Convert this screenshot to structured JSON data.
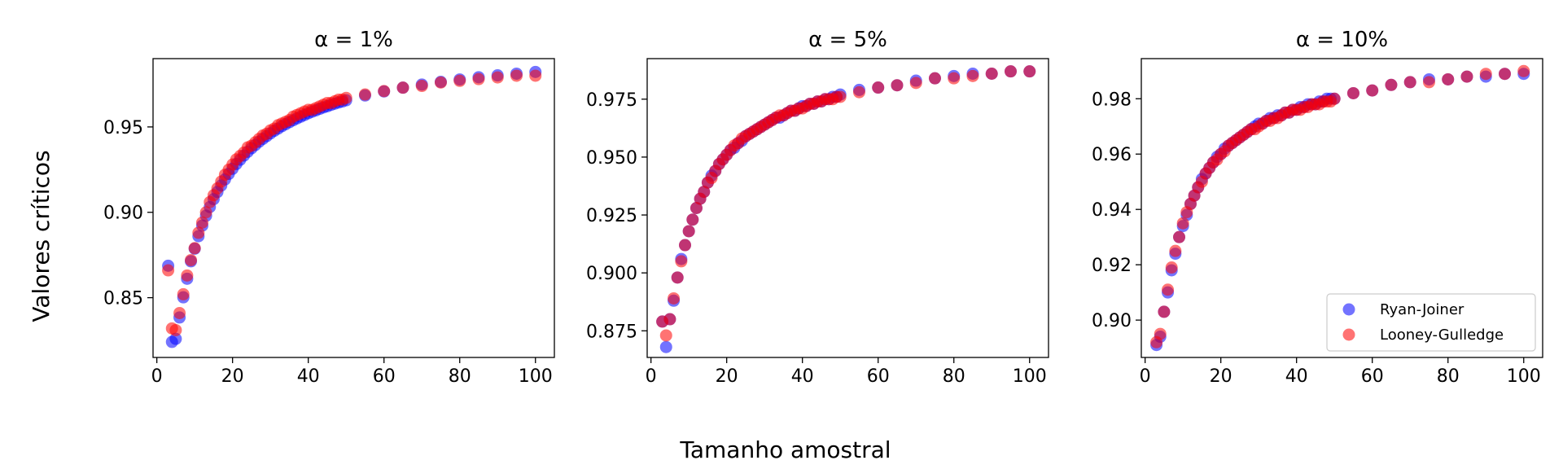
{
  "figure": {
    "ylabel": "Valores críticos",
    "xlabel": "Tamanho amostral"
  },
  "legend": {
    "entries": [
      "Ryan-Joiner",
      "Looney-Gulledge"
    ],
    "placement": "lower-right of third panel"
  },
  "colors": {
    "ryan_joiner": "#0000ff",
    "looney_gulledge": "#ff0000",
    "axes": "#000000"
  },
  "chart_data": [
    {
      "type": "scatter",
      "title": "α = 1%",
      "xlim": [
        -1,
        105
      ],
      "ylim": [
        0.815,
        0.99
      ],
      "xticks": [
        0,
        20,
        40,
        60,
        80,
        100
      ],
      "yticks": [
        0.85,
        0.9,
        0.95
      ],
      "ytick_labels": [
        "0.85",
        "0.90",
        "0.95"
      ],
      "series": [
        {
          "name": "Ryan-Joiner",
          "x": [
            3,
            4,
            5,
            6,
            7,
            8,
            9,
            10,
            11,
            12,
            13,
            14,
            15,
            16,
            17,
            18,
            19,
            20,
            21,
            22,
            23,
            24,
            25,
            26,
            27,
            28,
            29,
            30,
            31,
            32,
            33,
            34,
            35,
            36,
            37,
            38,
            39,
            40,
            41,
            42,
            43,
            44,
            45,
            46,
            47,
            48,
            49,
            50,
            55,
            60,
            65,
            70,
            75,
            80,
            85,
            90,
            95,
            100
          ],
          "y": [
            0.8687,
            0.8241,
            0.8259,
            0.8384,
            0.8502,
            0.8611,
            0.8713,
            0.8787,
            0.886,
            0.8922,
            0.898,
            0.9031,
            0.9077,
            0.9119,
            0.9157,
            0.9193,
            0.9225,
            0.9255,
            0.9283,
            0.9308,
            0.9332,
            0.9354,
            0.9375,
            0.9394,
            0.9413,
            0.943,
            0.9446,
            0.9462,
            0.9477,
            0.949,
            0.9504,
            0.9516,
            0.9528,
            0.9539,
            0.955,
            0.956,
            0.957,
            0.958,
            0.9589,
            0.9597,
            0.9606,
            0.9614,
            0.9621,
            0.9629,
            0.9636,
            0.9643,
            0.9649,
            0.9656,
            0.9684,
            0.9708,
            0.973,
            0.9748,
            0.9764,
            0.9778,
            0.9791,
            0.9802,
            0.9812,
            0.9822
          ]
        },
        {
          "name": "Looney-Gulledge",
          "x": [
            3,
            4,
            5,
            6,
            7,
            8,
            9,
            10,
            11,
            12,
            13,
            14,
            15,
            16,
            17,
            18,
            19,
            20,
            21,
            22,
            23,
            24,
            25,
            26,
            27,
            28,
            29,
            30,
            31,
            32,
            33,
            34,
            35,
            36,
            37,
            38,
            39,
            40,
            41,
            42,
            43,
            44,
            45,
            46,
            47,
            48,
            49,
            50,
            55,
            60,
            65,
            70,
            75,
            80,
            85,
            90,
            95,
            100
          ],
          "y": [
            0.866,
            0.832,
            0.831,
            0.841,
            0.852,
            0.863,
            0.872,
            0.879,
            0.888,
            0.894,
            0.9,
            0.906,
            0.91,
            0.914,
            0.918,
            0.922,
            0.925,
            0.928,
            0.931,
            0.933,
            0.935,
            0.938,
            0.939,
            0.941,
            0.943,
            0.945,
            0.946,
            0.948,
            0.949,
            0.951,
            0.952,
            0.953,
            0.954,
            0.956,
            0.957,
            0.958,
            0.959,
            0.96,
            0.96,
            0.961,
            0.962,
            0.963,
            0.964,
            0.964,
            0.965,
            0.966,
            0.966,
            0.967,
            0.969,
            0.971,
            0.973,
            0.974,
            0.976,
            0.977,
            0.978,
            0.979,
            0.98,
            0.98
          ]
        }
      ]
    },
    {
      "type": "scatter",
      "title": "α = 5%",
      "xlim": [
        -1,
        105
      ],
      "ylim": [
        0.8635,
        0.9925
      ],
      "xticks": [
        0,
        20,
        40,
        60,
        80,
        100
      ],
      "yticks": [
        0.875,
        0.9,
        0.925,
        0.95,
        0.975
      ],
      "ytick_labels": [
        "0.875",
        "0.900",
        "0.925",
        "0.950",
        "0.975"
      ],
      "series": [
        {
          "name": "Ryan-Joiner",
          "x": [
            3,
            4,
            5,
            6,
            7,
            8,
            9,
            10,
            11,
            12,
            13,
            14,
            15,
            16,
            17,
            18,
            19,
            20,
            21,
            22,
            23,
            24,
            25,
            26,
            27,
            28,
            29,
            30,
            31,
            32,
            33,
            34,
            35,
            36,
            37,
            38,
            39,
            40,
            41,
            42,
            43,
            44,
            45,
            46,
            47,
            48,
            49,
            50,
            55,
            60,
            65,
            70,
            75,
            80,
            85,
            90,
            95,
            100
          ],
          "y": [
            0.879,
            0.868,
            0.88,
            0.888,
            0.898,
            0.906,
            0.912,
            0.918,
            0.923,
            0.928,
            0.932,
            0.935,
            0.939,
            0.942,
            0.944,
            0.947,
            0.949,
            0.951,
            0.953,
            0.954,
            0.956,
            0.957,
            0.959,
            0.96,
            0.961,
            0.962,
            0.963,
            0.964,
            0.965,
            0.966,
            0.967,
            0.967,
            0.968,
            0.969,
            0.97,
            0.97,
            0.971,
            0.972,
            0.972,
            0.973,
            0.973,
            0.974,
            0.974,
            0.975,
            0.975,
            0.976,
            0.976,
            0.977,
            0.979,
            0.98,
            0.981,
            0.983,
            0.984,
            0.985,
            0.986,
            0.986,
            0.987,
            0.987
          ]
        },
        {
          "name": "Looney-Gulledge",
          "x": [
            3,
            4,
            5,
            6,
            7,
            8,
            9,
            10,
            11,
            12,
            13,
            14,
            15,
            16,
            17,
            18,
            19,
            20,
            21,
            22,
            23,
            24,
            25,
            26,
            27,
            28,
            29,
            30,
            31,
            32,
            33,
            34,
            35,
            36,
            37,
            38,
            39,
            40,
            41,
            42,
            43,
            44,
            45,
            46,
            47,
            48,
            49,
            50,
            55,
            60,
            65,
            70,
            75,
            80,
            85,
            90,
            95,
            100
          ],
          "y": [
            0.879,
            0.873,
            0.88,
            0.889,
            0.898,
            0.905,
            0.912,
            0.918,
            0.923,
            0.928,
            0.932,
            0.935,
            0.939,
            0.941,
            0.944,
            0.947,
            0.949,
            0.951,
            0.953,
            0.955,
            0.956,
            0.958,
            0.959,
            0.96,
            0.961,
            0.962,
            0.963,
            0.964,
            0.965,
            0.966,
            0.967,
            0.968,
            0.968,
            0.969,
            0.97,
            0.97,
            0.971,
            0.971,
            0.972,
            0.973,
            0.973,
            0.974,
            0.974,
            0.975,
            0.975,
            0.975,
            0.976,
            0.976,
            0.978,
            0.98,
            0.981,
            0.982,
            0.984,
            0.984,
            0.985,
            0.986,
            0.987,
            0.987
          ]
        }
      ]
    },
    {
      "type": "scatter",
      "title": "α = 10%",
      "xlim": [
        -1,
        105
      ],
      "ylim": [
        0.8865,
        0.9945
      ],
      "xticks": [
        0,
        20,
        40,
        60,
        80,
        100
      ],
      "yticks": [
        0.9,
        0.92,
        0.94,
        0.96,
        0.98
      ],
      "ytick_labels": [
        "0.90",
        "0.92",
        "0.94",
        "0.96",
        "0.98"
      ],
      "series": [
        {
          "name": "Ryan-Joiner",
          "x": [
            3,
            4,
            5,
            6,
            7,
            8,
            9,
            10,
            11,
            12,
            13,
            14,
            15,
            16,
            17,
            18,
            19,
            20,
            21,
            22,
            23,
            24,
            25,
            26,
            27,
            28,
            29,
            30,
            31,
            32,
            33,
            34,
            35,
            36,
            37,
            38,
            39,
            40,
            41,
            42,
            43,
            44,
            45,
            46,
            47,
            48,
            49,
            50,
            55,
            60,
            65,
            70,
            75,
            80,
            85,
            90,
            95,
            100
          ],
          "y": [
            0.891,
            0.894,
            0.903,
            0.91,
            0.918,
            0.924,
            0.93,
            0.934,
            0.938,
            0.942,
            0.945,
            0.948,
            0.951,
            0.953,
            0.955,
            0.957,
            0.959,
            0.96,
            0.962,
            0.963,
            0.964,
            0.965,
            0.966,
            0.967,
            0.968,
            0.969,
            0.97,
            0.971,
            0.971,
            0.972,
            0.973,
            0.973,
            0.974,
            0.974,
            0.975,
            0.975,
            0.976,
            0.976,
            0.977,
            0.977,
            0.978,
            0.978,
            0.978,
            0.979,
            0.979,
            0.98,
            0.98,
            0.98,
            0.982,
            0.983,
            0.985,
            0.986,
            0.987,
            0.987,
            0.988,
            0.988,
            0.989,
            0.989
          ]
        },
        {
          "name": "Looney-Gulledge",
          "x": [
            3,
            4,
            5,
            6,
            7,
            8,
            9,
            10,
            11,
            12,
            13,
            14,
            15,
            16,
            17,
            18,
            19,
            20,
            21,
            22,
            23,
            24,
            25,
            26,
            27,
            28,
            29,
            30,
            31,
            32,
            33,
            34,
            35,
            36,
            37,
            38,
            39,
            40,
            41,
            42,
            43,
            44,
            45,
            46,
            47,
            48,
            49,
            50,
            55,
            60,
            65,
            70,
            75,
            80,
            85,
            90,
            95,
            100
          ],
          "y": [
            0.892,
            0.895,
            0.903,
            0.911,
            0.919,
            0.925,
            0.93,
            0.935,
            0.939,
            0.942,
            0.945,
            0.948,
            0.95,
            0.953,
            0.955,
            0.957,
            0.958,
            0.96,
            0.961,
            0.963,
            0.964,
            0.965,
            0.966,
            0.967,
            0.968,
            0.969,
            0.969,
            0.97,
            0.971,
            0.972,
            0.972,
            0.973,
            0.973,
            0.974,
            0.975,
            0.975,
            0.976,
            0.976,
            0.976,
            0.977,
            0.977,
            0.978,
            0.978,
            0.978,
            0.979,
            0.979,
            0.979,
            0.98,
            0.982,
            0.983,
            0.985,
            0.986,
            0.986,
            0.987,
            0.988,
            0.989,
            0.989,
            0.99
          ]
        }
      ]
    }
  ]
}
